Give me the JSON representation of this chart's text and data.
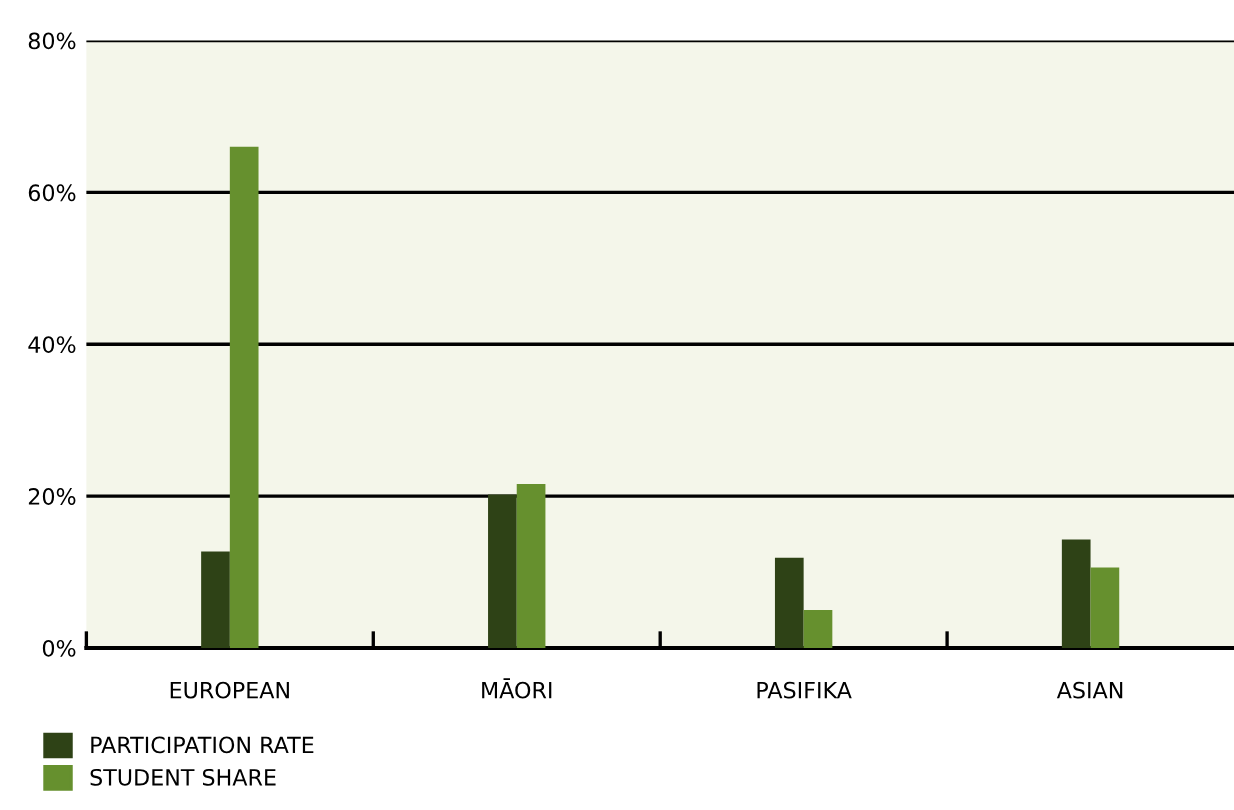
{
  "chart_data": {
    "type": "bar",
    "categories": [
      "EUROPEAN",
      "MĀORI",
      "PASIFIKA",
      "ASIAN"
    ],
    "series": [
      {
        "name": "PARTICIPATION RATE",
        "color": "#2e4216",
        "values": [
          12.7,
          20.2,
          11.9,
          14.3
        ]
      },
      {
        "name": "STUDENT SHARE",
        "color": "#66902e",
        "values": [
          66.0,
          21.6,
          5.0,
          10.6
        ]
      }
    ],
    "ylim": [
      0,
      80
    ],
    "yticks": [
      {
        "value": 0,
        "label": "0%"
      },
      {
        "value": 20,
        "label": "20%"
      },
      {
        "value": 40,
        "label": "40%"
      },
      {
        "value": 60,
        "label": "60%"
      },
      {
        "value": 80,
        "label": "80%"
      }
    ],
    "grid": "y",
    "legend": "bottom left"
  }
}
